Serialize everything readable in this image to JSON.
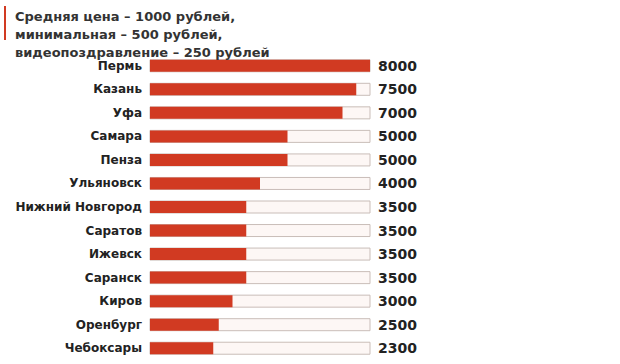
{
  "chart_data": {
    "type": "bar",
    "orientation": "horizontal",
    "title": "Средняя цена – 1000 рублей, минимальная – 500 рублей, видеопоздравление – 250 рублей",
    "categories": [
      "Пермь",
      "Казань",
      "Уфа",
      "Самара",
      "Пенза",
      "Ульяновск",
      "Нижний Новгород",
      "Саратов",
      "Ижевск",
      "Саранск",
      "Киров",
      "Оренбург",
      "Чебоксары"
    ],
    "values": [
      8000,
      7500,
      7000,
      5000,
      5000,
      4000,
      3500,
      3500,
      3500,
      3500,
      3000,
      2500,
      2300
    ],
    "color": "#d13a22",
    "xlim": [
      0,
      8000
    ],
    "data_labels": true,
    "tick_labels": "y",
    "grid": false
  }
}
